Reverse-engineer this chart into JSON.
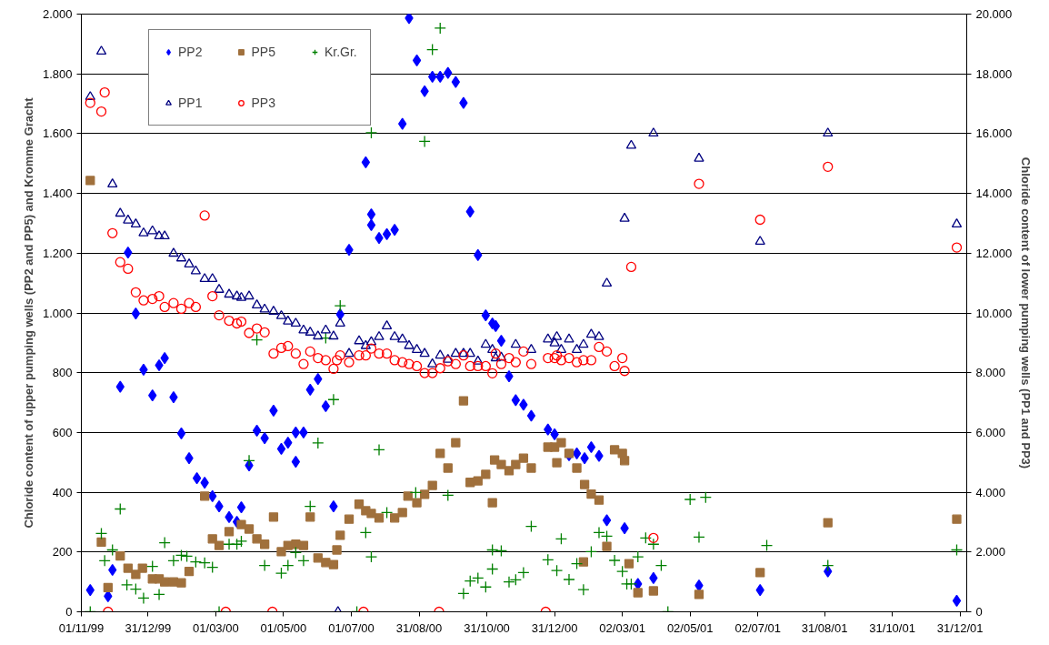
{
  "chart_data": {
    "type": "scatter",
    "ylabel": "Chloride content of upper pumping wells (PP2 and PP5) and Kromme Gracht",
    "y2label": "Chloride content of lower pumping wells (PP1 and PP3)",
    "xlim": [
      "1999-11-01",
      "2002-01-06"
    ],
    "xticks": [
      {
        "value": "1999-11-01",
        "label": "01/11/99"
      },
      {
        "value": "1999-12-31",
        "label": "31/12/99"
      },
      {
        "value": "2000-03-01",
        "label": "01/03/00"
      },
      {
        "value": "2000-05-01",
        "label": "01/05/00"
      },
      {
        "value": "2000-07-01",
        "label": "01/07/00"
      },
      {
        "value": "2000-08-31",
        "label": "31/08/00"
      },
      {
        "value": "2000-10-31",
        "label": "31/10/00"
      },
      {
        "value": "2000-12-31",
        "label": "31/12/00"
      },
      {
        "value": "2001-03-02",
        "label": "02/03/01"
      },
      {
        "value": "2001-05-02",
        "label": "02/05/01"
      },
      {
        "value": "2001-07-02",
        "label": "02/07/01"
      },
      {
        "value": "2001-08-31",
        "label": "31/08/01"
      },
      {
        "value": "2001-10-31",
        "label": "31/10/01"
      },
      {
        "value": "2001-12-31",
        "label": "31/12/01"
      }
    ],
    "ylim": [
      0,
      2000
    ],
    "yticks": [
      0,
      200,
      400,
      600,
      800,
      {
        "value": 1000,
        "label": "1.000"
      },
      {
        "value": 1200,
        "label": "1.200"
      },
      {
        "value": 1400,
        "label": "1.400"
      },
      {
        "value": 1600,
        "label": "1.600"
      },
      {
        "value": 1800,
        "label": "1.800"
      },
      {
        "value": 2000,
        "label": "2.000"
      }
    ],
    "y2lim": [
      0,
      20000
    ],
    "y2ticks": [
      0,
      {
        "value": 2000,
        "label": "2.000"
      },
      {
        "value": 4000,
        "label": "4.000"
      },
      {
        "value": 6000,
        "label": "6.000"
      },
      {
        "value": 8000,
        "label": "8.000"
      },
      {
        "value": 10000,
        "label": "10.000"
      },
      {
        "value": 12000,
        "label": "12.000"
      },
      {
        "value": 14000,
        "label": "14.000"
      },
      {
        "value": 16000,
        "label": "16.000"
      },
      {
        "value": 18000,
        "label": "18.000"
      },
      {
        "value": 20000,
        "label": "20.000"
      }
    ],
    "grid": "y",
    "legend": "top left",
    "series": [
      {
        "name": "PP2",
        "color": "#0000ff",
        "marker": "diamond",
        "x": [
          "1999-11-09",
          "1999-11-25",
          "1999-11-29",
          "1999-12-06",
          "1999-12-13",
          "1999-12-20",
          "1999-12-27",
          "2000-01-04",
          "2000-01-10",
          "2000-01-15",
          "2000-01-23",
          "2000-01-30",
          "2000-02-06",
          "2000-02-13",
          "2000-02-20",
          "2000-02-27",
          "2000-03-04",
          "2000-03-13",
          "2000-03-20",
          "2000-03-24",
          "2000-03-31",
          "2000-04-07",
          "2000-04-14",
          "2000-04-22",
          "2000-04-29",
          "2000-05-05",
          "2000-05-12",
          "2000-05-12",
          "2000-05-19",
          "2000-05-25",
          "2000-06-01",
          "2000-06-08",
          "2000-06-15",
          "2000-06-21",
          "2000-06-29",
          "2000-07-14",
          "2000-07-19",
          "2000-07-19",
          "2000-07-26",
          "2000-08-02",
          "2000-08-09",
          "2000-08-16",
          "2000-08-22",
          "2000-08-29",
          "2000-09-05",
          "2000-09-12",
          "2000-09-19",
          "2000-09-26",
          "2000-10-03",
          "2000-10-10",
          "2000-10-16",
          "2000-10-23",
          "2000-10-30",
          "2000-11-05",
          "2000-11-08",
          "2000-11-13",
          "2000-11-20",
          "2000-11-26",
          "2000-12-03",
          "2000-12-10",
          "2000-12-25",
          "2000-12-31",
          "2001-01-13",
          "2001-01-20",
          "2001-01-27",
          "2001-02-02",
          "2001-02-09",
          "2001-02-16",
          "2001-03-04",
          "2001-03-16",
          "2001-03-30",
          "2001-05-10",
          "2001-07-04",
          "2001-09-03",
          "2001-12-28"
        ],
        "values": [
          73,
          52,
          140,
          753,
          1202,
          998,
          810,
          724,
          825,
          849,
          718,
          597,
          514,
          447,
          432,
          387,
          353,
          317,
          301,
          350,
          490,
          606,
          581,
          673,
          545,
          566,
          502,
          600,
          600,
          743,
          779,
          688,
          353,
          995,
          1211,
          1504,
          1330,
          1294,
          1251,
          1264,
          1278,
          1633,
          1987,
          1845,
          1742,
          1790,
          1790,
          1803,
          1773,
          1703,
          1339,
          1194,
          992,
          965,
          956,
          907,
          788,
          708,
          693,
          656,
          610,
          594,
          524,
          530,
          514,
          551,
          522,
          306,
          280,
          93,
          113,
          88,
          73,
          135,
          37
        ]
      },
      {
        "name": "PP5",
        "color": "#a0703c",
        "marker": "square",
        "x": [
          "1999-11-09",
          "1999-11-19",
          "1999-11-25",
          "1999-12-06",
          "1999-12-13",
          "1999-12-20",
          "1999-12-26",
          "2000-01-04",
          "2000-01-10",
          "2000-01-15",
          "2000-01-23",
          "2000-01-30",
          "2000-02-06",
          "2000-02-20",
          "2000-02-27",
          "2000-03-04",
          "2000-03-13",
          "2000-03-24",
          "2000-03-31",
          "2000-04-07",
          "2000-04-14",
          "2000-04-22",
          "2000-04-29",
          "2000-05-05",
          "2000-05-12",
          "2000-05-19",
          "2000-05-25",
          "2000-06-01",
          "2000-06-08",
          "2000-06-15",
          "2000-06-18",
          "2000-06-21",
          "2000-06-29",
          "2000-07-08",
          "2000-07-14",
          "2000-07-19",
          "2000-07-26",
          "2000-08-09",
          "2000-08-16",
          "2000-08-21",
          "2000-08-29",
          "2000-09-05",
          "2000-09-12",
          "2000-09-19",
          "2000-09-26",
          "2000-10-03",
          "2000-10-10",
          "2000-10-16",
          "2000-10-23",
          "2000-10-30",
          "2000-11-05",
          "2000-11-07",
          "2000-11-13",
          "2000-11-20",
          "2000-11-26",
          "2000-12-03",
          "2000-12-10",
          "2000-12-25",
          "2000-12-31",
          "2001-01-02",
          "2001-01-06",
          "2001-01-13",
          "2001-01-20",
          "2001-01-26",
          "2001-01-27",
          "2001-02-02",
          "2001-02-09",
          "2001-02-16",
          "2001-02-23",
          "2001-03-02",
          "2001-03-04",
          "2001-03-08",
          "2001-03-16",
          "2001-03-30",
          "2001-05-10",
          "2001-07-04",
          "2001-09-03",
          "2001-12-28"
        ],
        "values": [
          1443,
          233,
          81,
          187,
          146,
          125,
          146,
          110,
          110,
          100,
          100,
          97,
          135,
          387,
          244,
          222,
          268,
          292,
          277,
          244,
          226,
          317,
          201,
          222,
          226,
          222,
          317,
          180,
          165,
          158,
          207,
          256,
          310,
          360,
          338,
          329,
          314,
          314,
          332,
          387,
          365,
          393,
          423,
          530,
          481,
          566,
          706,
          433,
          438,
          460,
          365,
          508,
          493,
          472,
          493,
          514,
          481,
          551,
          551,
          499,
          566,
          530,
          481,
          167,
          426,
          394,
          374,
          219,
          542,
          530,
          506,
          161,
          64,
          70,
          58,
          131,
          298,
          310
        ]
      },
      {
        "name": "Kr.Gr.",
        "color": "#008000",
        "marker": "cross",
        "x": [
          "1999-11-09",
          "1999-11-19",
          "1999-11-22",
          "1999-11-29",
          "1999-12-06",
          "1999-12-12",
          "1999-12-20",
          "1999-12-27",
          "2000-01-04",
          "2000-01-10",
          "2000-01-15",
          "2000-01-23",
          "2000-01-30",
          "2000-02-04",
          "2000-02-12",
          "2000-02-20",
          "2000-02-27",
          "2000-03-04",
          "2000-03-13",
          "2000-03-20",
          "2000-03-24",
          "2000-03-31",
          "2000-04-07",
          "2000-04-14",
          "2000-04-29",
          "2000-05-05",
          "2000-05-12",
          "2000-05-19",
          "2000-05-25",
          "2000-06-01",
          "2000-06-08",
          "2000-06-15",
          "2000-06-21",
          "2000-07-06",
          "2000-07-14",
          "2000-07-19",
          "2000-07-19",
          "2000-07-26",
          "2000-08-02",
          "2000-08-28",
          "2000-09-05",
          "2000-09-12",
          "2000-09-19",
          "2000-09-26",
          "2000-10-10",
          "2000-10-16",
          "2000-10-23",
          "2000-10-30",
          "2000-11-05",
          "2000-11-05",
          "2000-11-13",
          "2000-11-20",
          "2000-11-26",
          "2000-12-03",
          "2000-12-10",
          "2000-12-25",
          "2001-01-02",
          "2001-01-06",
          "2001-01-13",
          "2001-01-20",
          "2001-01-26",
          "2001-02-02",
          "2001-02-09",
          "2001-02-16",
          "2001-02-23",
          "2001-03-02",
          "2001-03-06",
          "2001-03-10",
          "2001-03-16",
          "2001-03-23",
          "2001-03-30",
          "2001-04-06",
          "2001-04-12",
          "2001-05-02",
          "2001-05-10",
          "2001-05-16",
          "2001-07-10",
          "2001-09-03",
          "2001-12-28"
        ],
        "values": [
          0,
          262,
          171,
          207,
          344,
          90,
          76,
          46,
          152,
          58,
          231,
          171,
          189,
          186,
          167,
          164,
          149,
          0,
          226,
          226,
          236,
          506,
          910,
          155,
          129,
          155,
          198,
          171,
          353,
          565,
          916,
          710,
          1024,
          0,
          265,
          1603,
          184,
          542,
          332,
          399,
          1574,
          1881,
          1953,
          390,
          61,
          103,
          113,
          83,
          143,
          207,
          204,
          100,
          107,
          131,
          286,
          174,
          138,
          244,
          108,
          161,
          74,
          201,
          265,
          253,
          172,
          135,
          93,
          93,
          184,
          247,
          226,
          155,
          0,
          376,
          250,
          383,
          222,
          155,
          207
        ]
      },
      {
        "name": "PP1",
        "color": "#000080",
        "marker": "triangle",
        "axis": "y2",
        "x": [
          "1999-11-09",
          "1999-11-19",
          "1999-11-29",
          "1999-12-06",
          "1999-12-13",
          "1999-12-20",
          "1999-12-27",
          "2000-01-04",
          "2000-01-10",
          "2000-01-15",
          "2000-01-23",
          "2000-01-30",
          "2000-02-06",
          "2000-02-12",
          "2000-02-20",
          "2000-02-27",
          "2000-03-04",
          "2000-03-13",
          "2000-03-20",
          "2000-03-24",
          "2000-03-31",
          "2000-04-07",
          "2000-04-14",
          "2000-04-22",
          "2000-04-29",
          "2000-05-05",
          "2000-05-12",
          "2000-05-19",
          "2000-05-25",
          "2000-06-01",
          "2000-06-08",
          "2000-06-15",
          "2000-06-19",
          "2000-06-21",
          "2000-06-29",
          "2000-07-08",
          "2000-07-14",
          "2000-07-19",
          "2000-07-26",
          "2000-08-02",
          "2000-08-09",
          "2000-08-16",
          "2000-08-22",
          "2000-08-29",
          "2000-09-05",
          "2000-09-12",
          "2000-09-19",
          "2000-09-26",
          "2000-10-03",
          "2000-10-10",
          "2000-10-16",
          "2000-10-23",
          "2000-10-30",
          "2000-11-05",
          "2000-11-08",
          "2000-11-13",
          "2000-11-26",
          "2000-12-10",
          "2000-12-25",
          "2000-12-31",
          "2001-01-02",
          "2001-01-06",
          "2001-01-13",
          "2001-01-20",
          "2001-01-26",
          "2001-02-02",
          "2001-02-09",
          "2001-02-16",
          "2001-03-04",
          "2001-03-10",
          "2001-03-30",
          "2001-05-10",
          "2001-07-04",
          "2001-09-03",
          "2001-12-28"
        ],
        "values": [
          17230,
          18750,
          14310,
          13330,
          13100,
          12970,
          12670,
          12740,
          12570,
          12570,
          11990,
          11830,
          11630,
          11400,
          11140,
          11140,
          10780,
          10620,
          10560,
          10510,
          10560,
          10260,
          10120,
          10050,
          9900,
          9720,
          9650,
          9420,
          9350,
          9220,
          9420,
          9220,
          0,
          9650,
          8640,
          9060,
          8900,
          9030,
          9200,
          9560,
          9200,
          9120,
          8900,
          8770,
          8640,
          8290,
          8580,
          8440,
          8640,
          8640,
          8640,
          8380,
          8940,
          8770,
          8490,
          8510,
          8940,
          8770,
          9120,
          8990,
          9200,
          8770,
          9120,
          8770,
          8940,
          9280,
          9200,
          10990,
          13160,
          15600,
          16010,
          15170,
          12390,
          16010,
          12970
        ]
      },
      {
        "name": "PP3",
        "color": "#ff0000",
        "marker": "circle",
        "axis": "y2",
        "x": [
          "1999-11-09",
          "1999-11-19",
          "1999-11-22",
          "1999-11-25",
          "1999-11-29",
          "1999-12-06",
          "1999-12-13",
          "1999-12-20",
          "1999-12-27",
          "2000-01-04",
          "2000-01-10",
          "2000-01-15",
          "2000-01-23",
          "2000-01-30",
          "2000-02-06",
          "2000-02-12",
          "2000-02-20",
          "2000-02-27",
          "2000-03-04",
          "2000-03-10",
          "2000-03-13",
          "2000-03-20",
          "2000-03-24",
          "2000-03-31",
          "2000-04-07",
          "2000-04-14",
          "2000-04-21",
          "2000-04-22",
          "2000-04-29",
          "2000-05-05",
          "2000-05-12",
          "2000-05-19",
          "2000-05-25",
          "2000-06-01",
          "2000-06-08",
          "2000-06-15",
          "2000-06-18",
          "2000-06-21",
          "2000-06-29",
          "2000-07-08",
          "2000-07-12",
          "2000-07-14",
          "2000-07-19",
          "2000-07-26",
          "2000-08-02",
          "2000-08-09",
          "2000-08-16",
          "2000-08-22",
          "2000-08-29",
          "2000-09-05",
          "2000-09-12",
          "2000-09-18",
          "2000-09-19",
          "2000-09-26",
          "2000-10-03",
          "2000-10-10",
          "2000-10-16",
          "2000-10-23",
          "2000-10-30",
          "2000-11-05",
          "2000-11-08",
          "2000-11-13",
          "2000-11-20",
          "2000-11-26",
          "2000-12-03",
          "2000-12-10",
          "2000-12-23",
          "2000-12-25",
          "2000-12-31",
          "2001-01-02",
          "2001-01-06",
          "2001-01-13",
          "2001-01-20",
          "2001-01-26",
          "2001-02-02",
          "2001-02-09",
          "2001-02-16",
          "2001-02-23",
          "2001-03-02",
          "2001-03-04",
          "2001-03-10",
          "2001-03-30",
          "2001-05-10",
          "2001-07-04",
          "2001-09-03",
          "2001-12-28"
        ],
        "values": [
          17030,
          16740,
          17380,
          0,
          12670,
          11700,
          11480,
          10690,
          10420,
          10470,
          10560,
          10200,
          10330,
          10140,
          10330,
          10200,
          13260,
          10560,
          9920,
          0,
          9740,
          9650,
          9710,
          9330,
          9480,
          9350,
          0,
          8640,
          8830,
          8890,
          8640,
          8290,
          8710,
          8490,
          8420,
          8130,
          8420,
          8580,
          8350,
          8580,
          0,
          8580,
          8810,
          8640,
          8640,
          8420,
          8350,
          8290,
          8220,
          7990,
          7990,
          0,
          8150,
          8380,
          8290,
          8580,
          8220,
          8220,
          8220,
          7980,
          8640,
          8290,
          8490,
          8350,
          8710,
          8290,
          0,
          8490,
          8490,
          8580,
          8420,
          8490,
          8350,
          8420,
          8420,
          8860,
          8710,
          8220,
          8490,
          8060,
          11540,
          2470,
          14320,
          13120,
          14890,
          12190
        ]
      }
    ]
  }
}
